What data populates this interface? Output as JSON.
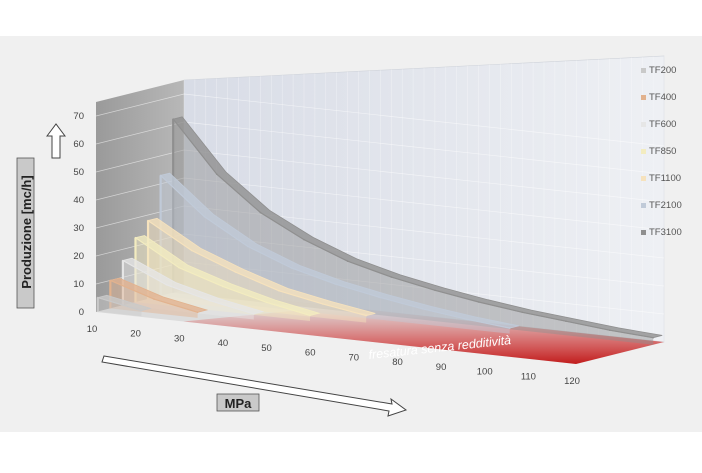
{
  "chart_data": {
    "type": "area",
    "projection": "3d",
    "ylabel": "Produzione [mc/h]",
    "xlabel": "MPa",
    "yticks": [
      "0",
      "10",
      "20",
      "30",
      "40",
      "50",
      "60",
      "70"
    ],
    "xticks": [
      "10",
      "20",
      "30",
      "40",
      "50",
      "60",
      "70",
      "80",
      "90",
      "100",
      "110",
      "120"
    ],
    "ylim": [
      0,
      70
    ],
    "xlim": [
      10,
      120
    ],
    "annotation": "fresatura senza redditività",
    "legend_position": "right",
    "series": [
      {
        "name": "TF200",
        "color": "#c9c9c9",
        "x": [
          10,
          20
        ],
        "y": [
          5,
          2
        ]
      },
      {
        "name": "TF400",
        "color": "#e2b28e",
        "x": [
          10,
          20,
          30
        ],
        "y": [
          10,
          5,
          2
        ]
      },
      {
        "name": "TF600",
        "color": "#e6e6e6",
        "x": [
          10,
          20,
          30,
          40
        ],
        "y": [
          16,
          9,
          5,
          2
        ]
      },
      {
        "name": "TF850",
        "color": "#f3ecc0",
        "x": [
          10,
          20,
          30,
          40,
          50
        ],
        "y": [
          23,
          14,
          9,
          5,
          2
        ]
      },
      {
        "name": "TF1100",
        "color": "#f6e2bd",
        "x": [
          10,
          20,
          30,
          40,
          50,
          60
        ],
        "y": [
          28,
          19,
          13,
          8,
          5,
          2.5
        ]
      },
      {
        "name": "TF2100",
        "color": "#c0cad8",
        "x": [
          10,
          20,
          30,
          40,
          50,
          60,
          70,
          80,
          90
        ],
        "y": [
          43,
          30,
          21,
          15,
          11,
          8,
          5.5,
          3.5,
          2
        ]
      },
      {
        "name": "TF3100",
        "color": "#8f8f8f",
        "x": [
          10,
          20,
          30,
          40,
          50,
          60,
          70,
          80,
          90,
          100,
          110,
          120
        ],
        "y": [
          62,
          44,
          32,
          24,
          18,
          14,
          11,
          8.5,
          6.5,
          5,
          3.5,
          2.5
        ]
      }
    ]
  }
}
